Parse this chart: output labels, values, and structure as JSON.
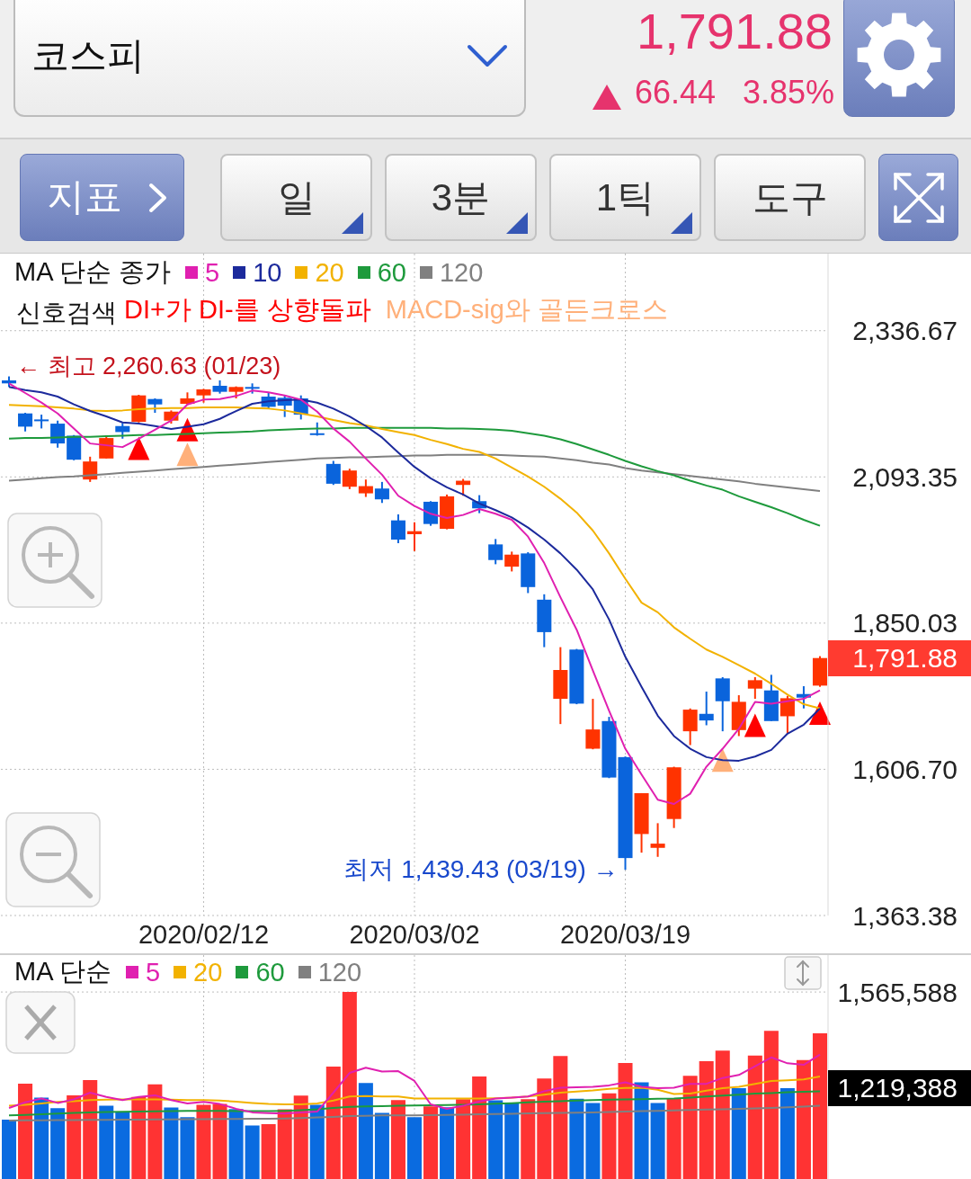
{
  "chart_data": [
    {
      "type": "candlestick",
      "title": "코스피",
      "annotations": [
        "1,791.88",
        "66.44",
        "3.85%",
        "지표",
        "일",
        "3분",
        "1틱",
        "도구",
        "신호검색",
        "← 최고 2,260.63 (01/23)",
        "1,791.88",
        {
          "text": "최저 1,439.43 (03/19) →",
          "x": "2020/03/19",
          "y": 1439.43
        }
      ],
      "categories": [
        null,
        null,
        null,
        null,
        null,
        null,
        null,
        null,
        null,
        null,
        null,
        null,
        "2020/02/12",
        null,
        null,
        null,
        null,
        null,
        null,
        null,
        null,
        null,
        null,
        null,
        null,
        "2020/03/02",
        null,
        null,
        null,
        null,
        null,
        null,
        null,
        null,
        null,
        null,
        null,
        null,
        "2020/03/19",
        null,
        null,
        null,
        null,
        null,
        null,
        null,
        null,
        null,
        null,
        null,
        null
      ],
      "ohlc": [
        [
          2254,
          2260.63,
          2243,
          2249
        ],
        [
          2199,
          2200,
          2169,
          2177
        ],
        [
          2189,
          2197,
          2174,
          2187
        ],
        [
          2182,
          2187,
          2142,
          2149
        ],
        [
          2162,
          2163,
          2121,
          2122
        ],
        [
          2089,
          2127,
          2085,
          2119
        ],
        [
          2124,
          2162,
          2124,
          2158
        ],
        [
          2178,
          2183,
          2157,
          2168
        ],
        [
          2185,
          2230,
          2184,
          2229
        ],
        [
          2223,
          2224,
          2200,
          2214
        ],
        [
          2187,
          2204,
          2182,
          2202
        ],
        [
          2215,
          2234,
          2213,
          2224
        ],
        [
          2229,
          2240,
          2217,
          2239
        ],
        [
          2245,
          2254,
          2232,
          2235
        ],
        [
          2235,
          2244,
          2224,
          2243
        ],
        [
          2243,
          2249,
          2232,
          2242
        ],
        [
          2227,
          2233,
          2207,
          2210
        ],
        [
          2225,
          2229,
          2193,
          2212
        ],
        [
          2224,
          2229,
          2189,
          2197
        ],
        [
          2166,
          2184,
          2162,
          2164
        ],
        [
          2115,
          2120,
          2080,
          2082
        ],
        [
          2077,
          2107,
          2073,
          2104
        ],
        [
          2066,
          2089,
          2060,
          2078
        ],
        [
          2074,
          2085,
          2050,
          2056
        ],
        [
          2021,
          2031,
          1983,
          1989
        ],
        [
          1998,
          2018,
          1970,
          2003
        ],
        [
          2052,
          2053,
          2012,
          2015
        ],
        [
          2007,
          2064,
          2006,
          2061
        ],
        [
          2080,
          2090,
          2062,
          2087
        ],
        [
          2053,
          2063,
          2033,
          2041
        ],
        [
          1981,
          1990,
          1948,
          1955
        ],
        [
          1944,
          1969,
          1936,
          1964
        ],
        [
          1966,
          1968,
          1900,
          1910
        ],
        [
          1889,
          1898,
          1810,
          1835
        ],
        [
          1724,
          1810,
          1682,
          1772
        ],
        [
          1806,
          1807,
          1715,
          1716
        ],
        [
          1641,
          1724,
          1640,
          1673
        ],
        [
          1687,
          1694,
          1592,
          1593
        ],
        [
          1627,
          1628,
          1439.43,
          1459
        ],
        [
          1499,
          1567,
          1468,
          1567
        ],
        [
          1476,
          1517,
          1461,
          1483
        ],
        [
          1524,
          1611,
          1509,
          1610
        ],
        [
          1670,
          1708,
          1647,
          1706
        ],
        [
          1699,
          1736,
          1680,
          1688
        ],
        [
          1758,
          1760,
          1670,
          1720
        ],
        [
          1672,
          1730,
          1662,
          1719
        ],
        [
          1741,
          1760,
          1724,
          1755
        ],
        [
          1738,
          1764,
          1687,
          1687
        ],
        [
          1695,
          1729,
          1666,
          1725
        ],
        [
          1732,
          1745,
          1708,
          1726
        ],
        [
          1746,
          1795,
          1744,
          1791.88
        ]
      ],
      "colors": [
        "#0a64dc",
        "#0a64dc",
        "#0a64dc",
        "#0a64dc",
        "#0a64dc",
        "#ff3300",
        "#ff3300",
        "#0a64dc",
        "#ff3300",
        "#0a64dc",
        "#ff3300",
        "#ff3300",
        "#ff3300",
        "#0a64dc",
        "#ff3300",
        "#0a64dc",
        "#0a64dc",
        "#0a64dc",
        "#0a64dc",
        "#0a64dc",
        "#0a64dc",
        "#ff3300",
        "#ff3300",
        "#0a64dc",
        "#0a64dc",
        "#ff3300",
        "#0a64dc",
        "#ff3300",
        "#ff3300",
        "#0a64dc",
        "#0a64dc",
        "#ff3300",
        "#0a64dc",
        "#0a64dc",
        "#ff3300",
        "#0a64dc",
        "#ff3300",
        "#0a64dc",
        "#0a64dc",
        "#ff3300",
        "#ff3300",
        "#ff3300",
        "#ff3300",
        "#0a64dc",
        "#0a64dc",
        "#ff3300",
        "#ff3300",
        "#0a64dc",
        "#ff3300",
        "#0a64dc",
        "#ff3300"
      ],
      "ylim": [
        1363.38,
        2465
      ],
      "yticks": [
        {
          "value": 2336.67,
          "label": "2,336.67"
        },
        {
          "value": 2093.35,
          "label": "2,093.35"
        },
        {
          "value": 1850.03,
          "label": "1,850.03"
        },
        {
          "value": 1606.7,
          "label": "1,606.70"
        },
        {
          "value": 1363.38,
          "label": "1,363.38"
        }
      ],
      "grid": true,
      "legend": "top left",
      "legend_title": "MA 단순 종가",
      "series": [
        {
          "name": "5",
          "type": "line",
          "color": "#e020b0",
          "values": [
            2249,
            2233,
            2217,
            2199,
            2174,
            2149,
            2146,
            2143,
            2157,
            2172,
            2187,
            2214,
            2222,
            2223,
            2228,
            2237,
            2234,
            2229,
            2222,
            2202,
            2174,
            2152,
            2124,
            2097,
            2062,
            2045,
            2032,
            2025,
            2030,
            2040,
            2032,
            2022,
            1994,
            1950,
            1893,
            1839,
            1771,
            1704,
            1641,
            1598,
            1556,
            1549,
            1566,
            1611,
            1641,
            1674,
            1719,
            1716,
            1720,
            1724,
            1738
          ]
        },
        {
          "name": "10",
          "type": "line",
          "color": "#1c2a9c",
          "values": [
            2243,
            2238,
            2234,
            2227,
            2214,
            2203,
            2194,
            2184,
            2182,
            2178,
            2173,
            2177,
            2181,
            2190,
            2203,
            2215,
            2219,
            2221,
            2222,
            2217,
            2207,
            2194,
            2178,
            2159,
            2134,
            2110,
            2091,
            2076,
            2064,
            2049,
            2038,
            2026,
            2009,
            1989,
            1966,
            1939,
            1906,
            1856,
            1794,
            1744,
            1696,
            1662,
            1641,
            1627,
            1622,
            1621,
            1628,
            1639,
            1666,
            1681,
            1708
          ]
        },
        {
          "name": "20",
          "type": "line",
          "color": "#f2b200",
          "values": [
            2213,
            2212,
            2211,
            2209,
            2207,
            2204,
            2203,
            2204,
            2206,
            2207,
            2208,
            2208,
            2209,
            2209,
            2209,
            2208,
            2207,
            2204,
            2199,
            2194,
            2188,
            2183,
            2179,
            2173,
            2168,
            2163,
            2155,
            2148,
            2140,
            2135,
            2124,
            2109,
            2094,
            2077,
            2057,
            2034,
            2004,
            1966,
            1924,
            1884,
            1868,
            1843,
            1824,
            1806,
            1794,
            1780,
            1766,
            1749,
            1731,
            1715,
            1708
          ]
        },
        {
          "name": "60",
          "type": "line",
          "color": "#1e9a3c",
          "values": [
            2157,
            2158,
            2158,
            2159,
            2160,
            2160,
            2161,
            2162,
            2163,
            2163,
            2164,
            2165,
            2166,
            2167,
            2168,
            2169,
            2171,
            2172,
            2173,
            2174,
            2174,
            2175,
            2175,
            2175,
            2175,
            2175,
            2175,
            2174,
            2174,
            2173,
            2172,
            2170,
            2166,
            2162,
            2156,
            2148,
            2139,
            2130,
            2120,
            2111,
            2103,
            2096,
            2087,
            2079,
            2072,
            2061,
            2052,
            2043,
            2033,
            2022,
            2012
          ]
        },
        {
          "name": "120",
          "type": "line",
          "color": "#808080",
          "values": [
            2087,
            2089,
            2091,
            2093,
            2094,
            2096,
            2098,
            2100,
            2102,
            2104,
            2106,
            2108,
            2110,
            2112,
            2114,
            2116,
            2118,
            2120,
            2122,
            2124,
            2125,
            2126,
            2126,
            2127,
            2128,
            2129,
            2129,
            2130,
            2130,
            2130,
            2130,
            2129,
            2128,
            2127,
            2124,
            2121,
            2117,
            2114,
            2108,
            2104,
            2101,
            2098,
            2095,
            2092,
            2089,
            2086,
            2082,
            2079,
            2076,
            2073,
            2070
          ]
        },
        {
          "name": "DI+가 DI-를 상향돌파",
          "type": "scatter",
          "marker": "triangle",
          "color": "#ff0000",
          "values": [
            null,
            null,
            null,
            null,
            null,
            null,
            null,
            null,
            2141,
            null,
            null,
            2172,
            null,
            null,
            null,
            null,
            null,
            null,
            null,
            null,
            null,
            null,
            null,
            null,
            null,
            null,
            null,
            null,
            null,
            null,
            null,
            null,
            null,
            null,
            null,
            null,
            null,
            null,
            null,
            null,
            null,
            null,
            null,
            null,
            null,
            null,
            1680,
            null,
            null,
            null,
            1700
          ]
        },
        {
          "name": "MACD-sig와 골든크로스",
          "type": "scatter",
          "marker": "triangle",
          "color": "#ffb07a",
          "values": [
            null,
            null,
            null,
            null,
            null,
            null,
            null,
            null,
            null,
            null,
            null,
            2131,
            null,
            null,
            null,
            null,
            null,
            null,
            null,
            null,
            null,
            null,
            null,
            null,
            null,
            null,
            null,
            null,
            null,
            null,
            null,
            null,
            null,
            null,
            null,
            null,
            null,
            null,
            null,
            null,
            null,
            null,
            null,
            null,
            1622,
            null,
            null,
            null,
            null,
            null,
            null
          ]
        }
      ]
    },
    {
      "type": "bar",
      "tick_labels": "y",
      "categories": [
        null,
        null,
        null,
        null,
        null,
        null,
        null,
        null,
        null,
        null,
        null,
        null,
        "2020/02/12",
        null,
        null,
        null,
        null,
        null,
        null,
        null,
        null,
        null,
        null,
        null,
        null,
        "2020/03/02",
        null,
        null,
        null,
        null,
        null,
        null,
        null,
        null,
        null,
        null,
        null,
        null,
        "2020/03/19",
        null,
        null,
        null,
        null,
        null,
        null,
        null,
        null,
        null,
        null,
        null,
        null
      ],
      "values": [
        497000,
        799000,
        681000,
        593000,
        701000,
        829000,
        613000,
        563000,
        687000,
        792000,
        598000,
        517000,
        622000,
        628000,
        586000,
        448000,
        460000,
        583000,
        698000,
        622000,
        941000,
        1565588,
        804000,
        554000,
        661000,
        517000,
        608000,
        600000,
        669000,
        858000,
        659000,
        637000,
        669000,
        841000,
        1030000,
        672000,
        637000,
        718000,
        971000,
        809000,
        637000,
        674000,
        865000,
        986000,
        1074000,
        760000,
        1033000,
        1241000,
        760000,
        996000,
        1219388
      ],
      "colors": [
        "#0a6be0",
        "#ff3333",
        "#0a6be0",
        "#0a6be0",
        "#ff3333",
        "#ff3333",
        "#0a6be0",
        "#0a6be0",
        "#ff3333",
        "#ff3333",
        "#0a6be0",
        "#0a6be0",
        "#ff3333",
        "#ff3333",
        "#0a6be0",
        "#0a6be0",
        "#ff3333",
        "#ff3333",
        "#ff3333",
        "#0a6be0",
        "#ff3333",
        "#ff3333",
        "#0a6be0",
        "#0a6be0",
        "#ff3333",
        "#0a6be0",
        "#ff3333",
        "#0a6be0",
        "#ff3333",
        "#ff3333",
        "#0a6be0",
        "#0a6be0",
        "#ff3333",
        "#ff3333",
        "#ff3333",
        "#0a6be0",
        "#0a6be0",
        "#ff3333",
        "#ff3333",
        "#0a6be0",
        "#0a6be0",
        "#ff3333",
        "#ff3333",
        "#ff3333",
        "#ff3333",
        "#0a6be0",
        "#ff3333",
        "#ff3333",
        "#0a6be0",
        "#ff3333",
        "#ff3333"
      ],
      "ylim": [
        0,
        1875000
      ],
      "yticks": [
        {
          "value": 1565588,
          "label": "1,565,588"
        }
      ],
      "grid": true,
      "legend": "top left",
      "legend_title": "MA 단순",
      "series": [
        {
          "name": "5",
          "type": "line",
          "color": "#e020b0",
          "values": [
            595000,
            642000,
            674000,
            637000,
            667000,
            723000,
            687000,
            661000,
            687000,
            701000,
            661000,
            632000,
            645000,
            628000,
            588000,
            558000,
            551000,
            547000,
            558000,
            564000,
            723000,
            888000,
            932000,
            900000,
            903000,
            821000,
            625000,
            588000,
            613000,
            650000,
            674000,
            681000,
            691000,
            735000,
            765000,
            768000,
            772000,
            784000,
            809000,
            772000,
            760000,
            765000,
            797000,
            797000,
            846000,
            871000,
            944000,
            1018000,
            969000,
            956000,
            1042000
          ]
        },
        {
          "name": "20",
          "type": "line",
          "color": "#f2b200",
          "values": [
            613000,
            622000,
            632000,
            645000,
            652000,
            661000,
            664000,
            667000,
            667000,
            667000,
            664000,
            661000,
            661000,
            657000,
            647000,
            637000,
            628000,
            625000,
            625000,
            632000,
            657000,
            691000,
            694000,
            691000,
            691000,
            674000,
            674000,
            674000,
            674000,
            674000,
            676000,
            681000,
            691000,
            706000,
            723000,
            733000,
            742000,
            755000,
            762000,
            765000,
            748000,
            711000,
            716000,
            740000,
            760000,
            772000,
            797000,
            821000,
            826000,
            834000,
            858000
          ]
        },
        {
          "name": "60",
          "type": "line",
          "color": "#1e9a3c",
          "values": [
            532000,
            537000,
            542000,
            547000,
            553000,
            558000,
            561000,
            563000,
            564000,
            566000,
            569000,
            571000,
            571000,
            570000,
            569000,
            569000,
            569000,
            571000,
            576000,
            583000,
            595000,
            605000,
            608000,
            610000,
            613000,
            615000,
            617000,
            620000,
            622000,
            625000,
            630000,
            635000,
            642000,
            647000,
            652000,
            657000,
            661000,
            664000,
            667000,
            669000,
            672000,
            674000,
            681000,
            691000,
            698000,
            706000,
            716000,
            720000,
            726000,
            731000,
            735000
          ]
        },
        {
          "name": "120",
          "type": "line",
          "color": "#808080",
          "values": [
            490000,
            491000,
            492000,
            493000,
            494000,
            495000,
            496000,
            497000,
            497000,
            498000,
            499000,
            500000,
            501000,
            502000,
            503000,
            504000,
            505000,
            506000,
            510000,
            515000,
            520000,
            527000,
            529000,
            532000,
            532000,
            533000,
            534000,
            537000,
            539000,
            542000,
            544000,
            546000,
            549000,
            551000,
            554000,
            556000,
            558000,
            561000,
            565000,
            569000,
            571000,
            575000,
            578000,
            581000,
            584000,
            588000,
            591000,
            595000,
            600000,
            606000,
            613000
          ]
        }
      ],
      "annotations": [
        "1,219,388"
      ]
    }
  ]
}
